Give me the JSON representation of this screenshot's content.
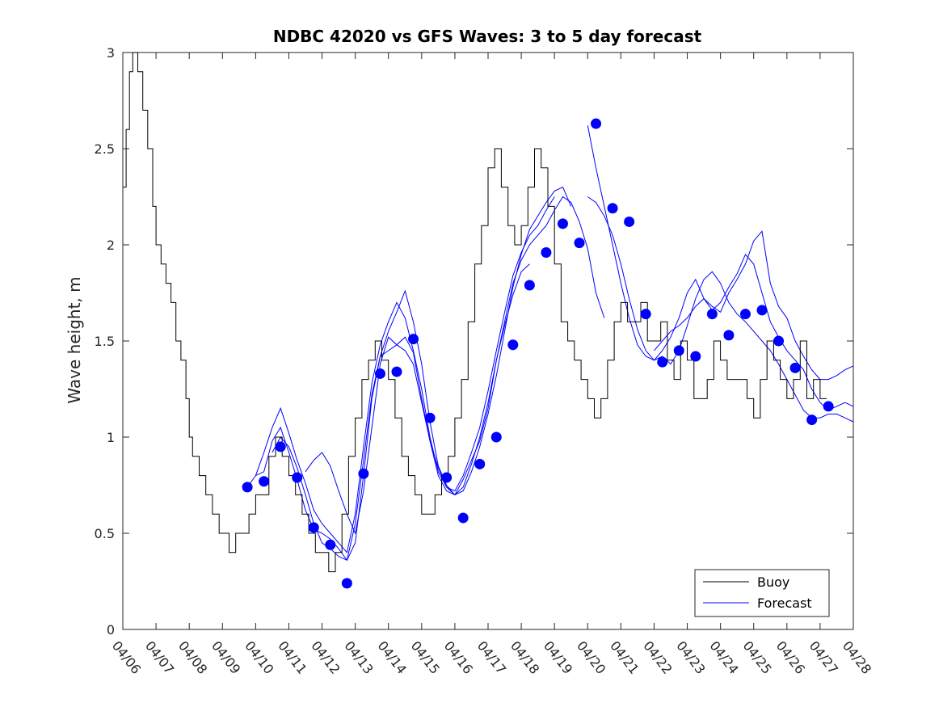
{
  "chart_data": {
    "type": "line",
    "title": "NDBC 42020 vs GFS Waves: 3 to 5 day forecast",
    "xlabel": "",
    "ylabel": "Wave height, m",
    "xlim": [
      0,
      22
    ],
    "ylim": [
      0,
      3
    ],
    "x_tick_labels": [
      "04/06",
      "04/07",
      "04/08",
      "04/09",
      "04/10",
      "04/11",
      "04/12",
      "04/13",
      "04/14",
      "04/15",
      "04/16",
      "04/17",
      "04/18",
      "04/19",
      "04/20",
      "04/21",
      "04/22",
      "04/23",
      "04/24",
      "04/25",
      "04/26",
      "04/27",
      "04/28"
    ],
    "y_ticks": [
      0,
      0.5,
      1,
      1.5,
      2,
      2.5,
      3
    ],
    "y_tick_labels": [
      "0",
      "0.5",
      "1",
      "1.5",
      "2",
      "2.5",
      "3"
    ],
    "legend": {
      "position": "bottom-right",
      "entries": [
        "Buoy",
        "Forecast"
      ]
    },
    "colors": {
      "buoy": "#000000",
      "forecast": "#0000ff",
      "axes": "#262626"
    },
    "note_x_units": "days since 04/06 00:00",
    "buoy": {
      "name": "Buoy",
      "x": [
        0.0,
        0.1,
        0.2,
        0.3,
        0.45,
        0.6,
        0.75,
        0.9,
        1.0,
        1.15,
        1.3,
        1.45,
        1.6,
        1.75,
        1.9,
        2.0,
        2.1,
        2.3,
        2.5,
        2.7,
        2.9,
        3.0,
        3.2,
        3.4,
        3.6,
        3.8,
        4.0,
        4.2,
        4.4,
        4.6,
        4.8,
        5.0,
        5.2,
        5.4,
        5.6,
        5.8,
        6.0,
        6.2,
        6.4,
        6.6,
        6.8,
        7.0,
        7.2,
        7.4,
        7.6,
        7.8,
        8.0,
        8.2,
        8.4,
        8.6,
        8.8,
        9.0,
        9.2,
        9.4,
        9.6,
        9.8,
        10.0,
        10.2,
        10.4,
        10.6,
        10.8,
        11.0,
        11.2,
        11.4,
        11.6,
        11.8,
        12.0,
        12.2,
        12.4,
        12.6,
        12.8,
        13.0,
        13.2,
        13.4,
        13.6,
        13.8,
        14.0,
        14.2,
        14.4,
        14.6,
        14.8,
        15.0,
        15.2,
        15.4,
        15.6,
        15.8,
        16.0,
        16.2,
        16.4,
        16.6,
        16.8,
        17.0,
        17.2,
        17.4,
        17.6,
        17.8,
        18.0,
        18.2,
        18.4,
        18.6,
        18.8,
        19.0,
        19.2,
        19.4,
        19.6,
        19.8,
        20.0,
        20.2,
        20.4,
        20.6,
        20.8,
        21.0,
        21.2
      ],
      "y": [
        2.3,
        2.6,
        2.9,
        3.0,
        2.9,
        2.7,
        2.5,
        2.2,
        2.0,
        1.9,
        1.8,
        1.7,
        1.5,
        1.4,
        1.2,
        1.0,
        0.9,
        0.8,
        0.7,
        0.6,
        0.5,
        0.5,
        0.4,
        0.5,
        0.5,
        0.6,
        0.7,
        0.7,
        0.9,
        1.0,
        0.9,
        0.8,
        0.7,
        0.6,
        0.5,
        0.4,
        0.4,
        0.3,
        0.4,
        0.6,
        0.9,
        1.1,
        1.3,
        1.4,
        1.5,
        1.4,
        1.3,
        1.1,
        0.9,
        0.8,
        0.7,
        0.6,
        0.6,
        0.7,
        0.8,
        0.9,
        1.1,
        1.3,
        1.6,
        1.9,
        2.1,
        2.4,
        2.5,
        2.3,
        2.1,
        2.0,
        2.1,
        2.3,
        2.5,
        2.4,
        2.2,
        1.9,
        1.6,
        1.5,
        1.4,
        1.3,
        1.2,
        1.1,
        1.2,
        1.4,
        1.6,
        1.7,
        1.6,
        1.6,
        1.7,
        1.5,
        1.5,
        1.6,
        1.4,
        1.3,
        1.5,
        1.4,
        1.2,
        1.2,
        1.3,
        1.5,
        1.4,
        1.3,
        1.3,
        1.3,
        1.2,
        1.1,
        1.3,
        1.5,
        1.4,
        1.3,
        1.2,
        1.3,
        1.5,
        1.2,
        1.3,
        1.2,
        1.2
      ]
    },
    "forecast_points": {
      "name": "Forecast",
      "x": [
        3.75,
        4.25,
        4.75,
        5.25,
        5.75,
        6.25,
        6.75,
        7.25,
        7.75,
        8.25,
        8.75,
        9.25,
        9.75,
        10.25,
        10.75,
        11.25,
        11.75,
        12.25,
        12.75,
        13.25,
        13.75,
        14.25,
        14.75,
        15.25,
        15.75,
        16.25,
        16.75,
        17.25,
        17.75,
        18.25,
        18.75,
        19.25,
        19.75,
        20.25,
        20.75,
        21.25
      ],
      "y": [
        0.74,
        0.77,
        0.95,
        0.79,
        0.53,
        0.44,
        0.24,
        0.81,
        1.33,
        1.34,
        1.51,
        1.1,
        0.79,
        0.58,
        0.86,
        1.0,
        1.48,
        1.79,
        1.96,
        2.11,
        2.01,
        2.63,
        2.19,
        2.12,
        1.64,
        1.39,
        1.45,
        1.42,
        1.64,
        1.53,
        1.64,
        1.66,
        1.5,
        1.36,
        1.09,
        1.16
      ]
    },
    "forecast_runs": [
      {
        "x": [
          3.75,
          4.0,
          4.25,
          4.5,
          4.75,
          5.0,
          5.25,
          5.5,
          5.75,
          6.0,
          6.25,
          6.5,
          6.75,
          7.0,
          7.25,
          7.5,
          7.75,
          8.0,
          8.25,
          8.5,
          8.75,
          9.0,
          9.25,
          9.5,
          9.75,
          10.0,
          10.25,
          10.5,
          10.75,
          11.0,
          11.25,
          11.5,
          11.75,
          12.0,
          12.25
        ],
        "y": [
          0.74,
          0.8,
          0.82,
          0.98,
          1.05,
          0.92,
          0.78,
          0.62,
          0.52,
          0.5,
          0.47,
          0.42,
          0.36,
          0.45,
          0.8,
          1.2,
          1.42,
          1.45,
          1.48,
          1.52,
          1.44,
          1.2,
          0.98,
          0.8,
          0.72,
          0.7,
          0.78,
          0.88,
          0.98,
          1.15,
          1.4,
          1.58,
          1.74,
          1.86,
          1.9
        ]
      },
      {
        "x": [
          4.0,
          4.25,
          4.5,
          4.75,
          5.0,
          5.25,
          5.5,
          5.75,
          6.0,
          6.25,
          6.5,
          6.75,
          7.0,
          7.25,
          7.5,
          7.75,
          8.0,
          8.25,
          8.5,
          8.75,
          9.0,
          9.25,
          9.5,
          9.75,
          10.0,
          10.25,
          10.5,
          10.75,
          11.0,
          11.25,
          11.5,
          11.75,
          12.0,
          12.25,
          12.5,
          12.75,
          13.0
        ],
        "y": [
          0.8,
          0.92,
          1.05,
          1.15,
          1.02,
          0.88,
          0.76,
          0.62,
          0.55,
          0.5,
          0.45,
          0.4,
          0.6,
          0.95,
          1.28,
          1.48,
          1.6,
          1.7,
          1.62,
          1.45,
          1.25,
          1.0,
          0.82,
          0.74,
          0.72,
          0.8,
          0.92,
          1.05,
          1.24,
          1.45,
          1.65,
          1.84,
          1.96,
          2.05,
          2.1,
          2.18,
          2.25
        ]
      },
      {
        "x": [
          4.5,
          4.75,
          5.0,
          5.25,
          5.5,
          5.75,
          6.0,
          6.25,
          6.5,
          6.75,
          7.0,
          7.25,
          7.5,
          7.75,
          8.0,
          8.25,
          8.5,
          8.75,
          9.0,
          9.25,
          9.5,
          9.75,
          10.0,
          10.25,
          10.5,
          10.75,
          11.0,
          11.25,
          11.5,
          11.75,
          12.0,
          12.25,
          12.5,
          12.75,
          13.0,
          13.25,
          13.5
        ],
        "y": [
          0.92,
          1.0,
          0.95,
          0.84,
          0.7,
          0.55,
          0.45,
          0.42,
          0.38,
          0.36,
          0.55,
          0.88,
          1.22,
          1.42,
          1.55,
          1.65,
          1.76,
          1.6,
          1.38,
          1.08,
          0.85,
          0.75,
          0.7,
          0.72,
          0.82,
          0.95,
          1.12,
          1.32,
          1.55,
          1.78,
          1.95,
          2.08,
          2.15,
          2.22,
          2.28,
          2.3,
          2.2
        ]
      },
      {
        "x": [
          5.5,
          5.75,
          6.0,
          6.25,
          6.5,
          6.75,
          7.0,
          7.25,
          7.5,
          7.75,
          8.0,
          8.25,
          8.5,
          8.75,
          9.0,
          9.25,
          9.5,
          9.75,
          10.0,
          10.25,
          10.5,
          10.75,
          11.0,
          11.25,
          11.5,
          11.75,
          12.0,
          12.25,
          12.5,
          12.75,
          13.0,
          13.25,
          13.5,
          13.75,
          14.0,
          14.25,
          14.5
        ],
        "y": [
          0.82,
          0.88,
          0.92,
          0.85,
          0.72,
          0.6,
          0.5,
          0.72,
          1.05,
          1.38,
          1.52,
          1.48,
          1.45,
          1.38,
          1.18,
          0.98,
          0.84,
          0.74,
          0.7,
          0.74,
          0.86,
          1.0,
          1.18,
          1.4,
          1.6,
          1.8,
          1.92,
          2.0,
          2.05,
          2.1,
          2.18,
          2.25,
          2.22,
          2.12,
          1.98,
          1.75,
          1.62
        ]
      },
      {
        "x": [
          14.0,
          14.25,
          14.5,
          14.75,
          15.0,
          15.25,
          15.5,
          15.75,
          16.0,
          16.25,
          16.5,
          16.75,
          17.0,
          17.25,
          17.5,
          17.75,
          18.0,
          18.25,
          18.5,
          18.75,
          19.0,
          19.25,
          19.5,
          19.75,
          20.0,
          20.25,
          20.5,
          20.75,
          21.0,
          21.25,
          21.5,
          21.75,
          22.0
        ],
        "y": [
          2.62,
          2.4,
          2.2,
          2.0,
          1.8,
          1.62,
          1.48,
          1.42,
          1.4,
          1.42,
          1.38,
          1.45,
          1.58,
          1.72,
          1.82,
          1.86,
          1.8,
          1.7,
          1.64,
          1.6,
          1.55,
          1.5,
          1.45,
          1.38,
          1.3,
          1.22,
          1.14,
          1.1,
          1.1,
          1.12,
          1.12,
          1.1,
          1.08
        ]
      },
      {
        "x": [
          14.0,
          14.25,
          14.5,
          14.75,
          15.0,
          15.25,
          15.5,
          15.75,
          16.0,
          16.25,
          16.5,
          16.75,
          17.0,
          17.25,
          17.5,
          17.75,
          18.0,
          18.25,
          18.5,
          18.75,
          19.0,
          19.25,
          19.5,
          19.75,
          20.0,
          20.25,
          20.5,
          20.75,
          21.0,
          21.25,
          21.5,
          21.75,
          22.0
        ],
        "y": [
          2.25,
          2.22,
          2.15,
          2.05,
          1.9,
          1.72,
          1.56,
          1.45,
          1.4,
          1.45,
          1.52,
          1.62,
          1.75,
          1.82,
          1.72,
          1.66,
          1.7,
          1.78,
          1.85,
          1.95,
          1.9,
          1.75,
          1.6,
          1.52,
          1.45,
          1.4,
          1.35,
          1.25,
          1.18,
          1.14,
          1.16,
          1.18,
          1.16
        ]
      },
      {
        "x": [
          16.0,
          16.25,
          16.5,
          16.75,
          17.0,
          17.25,
          17.5,
          17.75,
          18.0,
          18.25,
          18.5,
          18.75,
          19.0,
          19.25,
          19.5,
          19.75,
          20.0,
          20.25,
          20.5,
          20.75,
          21.0,
          21.25,
          21.5,
          21.75,
          22.0
        ],
        "y": [
          1.45,
          1.5,
          1.55,
          1.58,
          1.62,
          1.68,
          1.72,
          1.68,
          1.65,
          1.75,
          1.82,
          1.9,
          2.02,
          2.07,
          1.8,
          1.68,
          1.62,
          1.5,
          1.42,
          1.35,
          1.3,
          1.3,
          1.32,
          1.35,
          1.37
        ]
      }
    ]
  }
}
